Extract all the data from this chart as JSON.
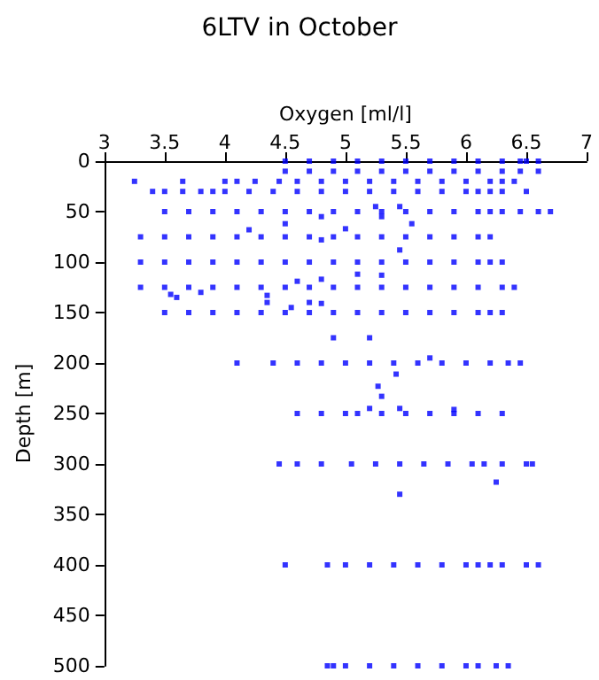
{
  "chart_data": {
    "type": "scatter",
    "title": "6LTV in October",
    "xlabel": "Oxygen [ml/l]",
    "ylabel": "Depth [m]",
    "xlim": [
      3,
      7
    ],
    "xticks": [
      3,
      3.5,
      4,
      4.5,
      5,
      5.5,
      6,
      6.5,
      7
    ],
    "ylim": [
      500,
      0
    ],
    "yticks": [
      0,
      50,
      100,
      150,
      200,
      250,
      300,
      350,
      400,
      450,
      500
    ],
    "grid": false,
    "marker": "square",
    "series": [
      {
        "color": "#0000ff",
        "x": [
          4.5,
          4.7,
          4.9,
          5.1,
          5.3,
          5.5,
          5.7,
          5.9,
          6.1,
          6.3,
          6.45,
          6.5,
          6.6
        ],
        "values": [
          0,
          0,
          0,
          0,
          0,
          0,
          0,
          0,
          0,
          0,
          0,
          0,
          0
        ]
      },
      {
        "color": "#0000ff",
        "x": [
          4.5,
          4.7,
          4.9,
          5.1,
          5.3,
          5.5,
          5.7,
          5.9,
          6.1,
          6.3,
          6.45,
          6.6
        ],
        "values": [
          10,
          10,
          10,
          10,
          10,
          10,
          10,
          10,
          10,
          10,
          10,
          10
        ]
      },
      {
        "color": "#0000ff",
        "x": [
          3.25,
          3.65,
          4.0,
          4.1,
          4.25,
          4.45,
          4.6,
          4.8,
          5.0,
          5.2,
          5.4,
          5.6,
          5.8,
          6.0,
          6.2,
          6.3,
          6.4
        ],
        "values": [
          20,
          20,
          20,
          20,
          20,
          20,
          20,
          20,
          20,
          20,
          20,
          20,
          20,
          20,
          20,
          20,
          20
        ]
      },
      {
        "color": "#0000ff",
        "x": [
          3.4,
          3.5,
          3.65,
          3.8,
          3.9,
          4.0,
          4.2,
          4.4,
          4.6,
          4.8,
          5.0,
          5.2,
          5.4,
          5.6,
          5.8,
          6.0,
          6.1,
          6.2,
          6.3,
          6.5
        ],
        "values": [
          30,
          30,
          30,
          30,
          30,
          30,
          30,
          30,
          30,
          30,
          30,
          30,
          30,
          30,
          30,
          30,
          30,
          30,
          30,
          30
        ]
      },
      {
        "color": "#0000ff",
        "x": [
          3.5,
          3.7,
          3.9,
          4.1,
          4.3,
          4.5,
          4.7,
          4.9,
          5.1,
          5.3,
          5.5,
          5.7,
          5.9,
          6.1,
          6.2,
          6.3,
          6.45,
          6.6,
          6.7
        ],
        "values": [
          50,
          50,
          50,
          50,
          50,
          50,
          50,
          50,
          50,
          50,
          50,
          50,
          50,
          50,
          50,
          50,
          50,
          50,
          50
        ]
      },
      {
        "color": "#0000ff",
        "x": [
          5.25,
          5.45,
          4.8,
          5.3,
          4.2,
          4.5,
          5.0,
          5.55,
          4.8,
          5.45
        ],
        "values": [
          45,
          45,
          55,
          55,
          68,
          62,
          67,
          62,
          78,
          88
        ]
      },
      {
        "color": "#0000ff",
        "x": [
          3.3,
          3.5,
          3.7,
          3.9,
          4.1,
          4.3,
          4.5,
          4.7,
          4.9,
          5.1,
          5.3,
          5.5,
          5.7,
          5.9,
          6.1,
          6.2
        ],
        "values": [
          75,
          75,
          75,
          75,
          75,
          75,
          75,
          75,
          75,
          75,
          75,
          75,
          75,
          75,
          75,
          75
        ]
      },
      {
        "color": "#0000ff",
        "x": [
          3.3,
          3.5,
          3.7,
          3.9,
          4.1,
          4.3,
          4.5,
          4.7,
          4.9,
          5.1,
          5.3,
          5.5,
          5.7,
          5.9,
          6.1,
          6.2,
          6.3
        ],
        "values": [
          100,
          100,
          100,
          100,
          100,
          100,
          100,
          100,
          100,
          100,
          100,
          100,
          100,
          100,
          100,
          100,
          100
        ]
      },
      {
        "color": "#0000ff",
        "x": [
          5.1,
          5.3,
          4.8,
          4.6
        ],
        "values": [
          112,
          113,
          117,
          119
        ]
      },
      {
        "color": "#0000ff",
        "x": [
          3.3,
          3.5,
          3.7,
          3.9,
          4.1,
          4.3,
          4.5,
          4.7,
          4.9,
          5.1,
          5.3,
          5.5,
          5.7,
          5.9,
          6.1,
          6.3,
          6.4
        ],
        "values": [
          125,
          125,
          125,
          125,
          125,
          125,
          125,
          125,
          125,
          125,
          125,
          125,
          125,
          125,
          125,
          125,
          125
        ]
      },
      {
        "color": "#0000ff",
        "x": [
          3.55,
          3.6,
          3.8,
          4.35,
          4.35,
          4.7,
          4.8,
          4.55
        ],
        "values": [
          132,
          135,
          130,
          133,
          140,
          140,
          141,
          145
        ]
      },
      {
        "color": "#0000ff",
        "x": [
          3.5,
          3.7,
          3.9,
          4.1,
          4.3,
          4.5,
          4.7,
          4.9,
          5.1,
          5.3,
          5.5,
          5.7,
          5.9,
          6.1,
          6.2,
          6.3
        ],
        "values": [
          150,
          150,
          150,
          150,
          150,
          150,
          150,
          150,
          150,
          150,
          150,
          150,
          150,
          150,
          150,
          150
        ]
      },
      {
        "color": "#0000ff",
        "x": [
          4.9,
          5.2,
          5.7,
          5.42,
          5.27,
          5.3
        ],
        "values": [
          175,
          175,
          195,
          211,
          223,
          233
        ]
      },
      {
        "color": "#0000ff",
        "x": [
          4.1,
          4.4,
          4.6,
          4.8,
          5.0,
          5.2,
          5.4,
          5.6,
          5.8,
          6.0,
          6.2,
          6.35,
          6.45
        ],
        "values": [
          200,
          200,
          200,
          200,
          200,
          200,
          200,
          200,
          200,
          200,
          200,
          200,
          200
        ]
      },
      {
        "color": "#0000ff",
        "x": [
          5.2,
          5.45,
          5.9
        ],
        "values": [
          245,
          245,
          246
        ]
      },
      {
        "color": "#0000ff",
        "x": [
          4.6,
          4.8,
          5.0,
          5.1,
          5.3,
          5.5,
          5.7,
          5.9,
          6.1,
          6.3
        ],
        "values": [
          250,
          250,
          250,
          250,
          250,
          250,
          250,
          250,
          250,
          250
        ]
      },
      {
        "color": "#0000ff",
        "x": [
          4.45,
          4.6,
          4.8,
          5.05,
          5.25,
          5.45,
          5.65,
          5.85,
          6.05,
          6.15,
          6.3,
          6.5,
          6.55
        ],
        "values": [
          300,
          300,
          300,
          300,
          300,
          300,
          300,
          300,
          300,
          300,
          300,
          300,
          300
        ]
      },
      {
        "color": "#0000ff",
        "x": [
          5.45,
          6.25
        ],
        "values": [
          330,
          318
        ]
      },
      {
        "color": "#0000ff",
        "x": [
          4.5,
          4.85,
          5.0,
          5.2,
          5.4,
          5.6,
          5.8,
          6.0,
          6.1,
          6.2,
          6.3,
          6.5,
          6.6
        ],
        "values": [
          400,
          400,
          400,
          400,
          400,
          400,
          400,
          400,
          400,
          400,
          400,
          400,
          400
        ]
      },
      {
        "color": "#0000ff",
        "x": [
          4.85,
          4.9,
          5.0,
          5.2,
          5.4,
          5.6,
          5.8,
          6.0,
          6.1,
          6.25,
          6.35
        ],
        "values": [
          500,
          500,
          500,
          500,
          500,
          500,
          500,
          500,
          500,
          500,
          500
        ]
      }
    ]
  }
}
